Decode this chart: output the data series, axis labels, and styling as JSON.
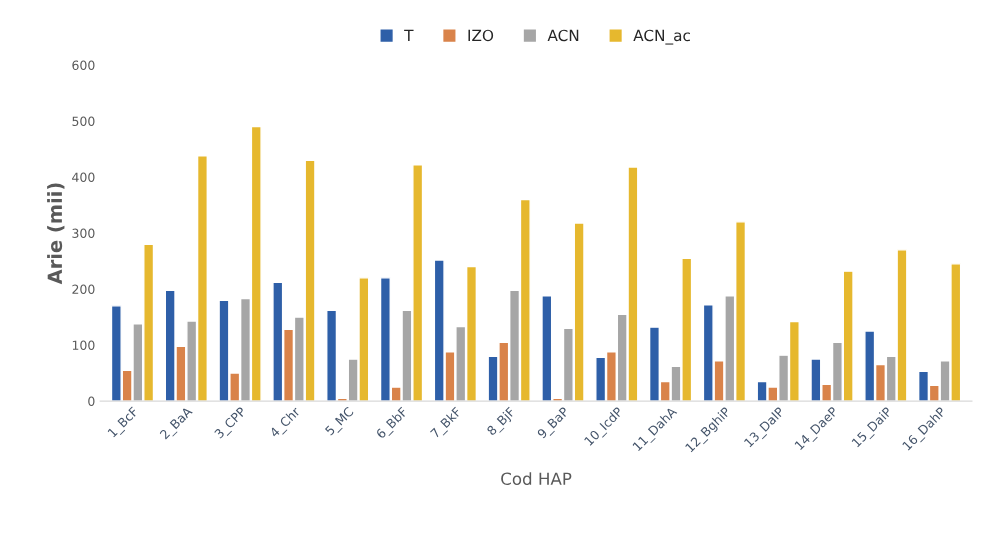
{
  "chart_data": {
    "type": "bar",
    "xlabel": "Cod HAP",
    "ylabel": "Arie (mii)",
    "categories": [
      "1_BcF",
      "2_BaA",
      "3_CPP",
      "4_Chr",
      "5_MC",
      "6_BbF",
      "7_BkF",
      "8_BjF",
      "9_BaP",
      "10_IcdP",
      "11_DahA",
      "12_BghiP",
      "13_DalP",
      "14_DaeP",
      "15_DaiP",
      "16_DahP"
    ],
    "series": [
      {
        "name": "T",
        "color": "#2e5fa8",
        "values": [
          170,
          198,
          180,
          212,
          162,
          220,
          252,
          80,
          188,
          78,
          132,
          172,
          35,
          75,
          125,
          53
        ]
      },
      {
        "name": "IZO",
        "color": "#d9834a",
        "values": [
          55,
          98,
          50,
          128,
          5,
          25,
          88,
          105,
          5,
          88,
          35,
          72,
          25,
          30,
          65,
          28
        ]
      },
      {
        "name": "ACN",
        "color": "#a6a6a6",
        "values": [
          138,
          143,
          183,
          150,
          75,
          162,
          133,
          198,
          130,
          155,
          62,
          188,
          82,
          105,
          80,
          72
        ]
      },
      {
        "name": "ACN_ac",
        "color": "#e6b82e",
        "values": [
          280,
          438,
          490,
          430,
          220,
          422,
          240,
          360,
          318,
          418,
          255,
          320,
          142,
          232,
          270,
          245
        ]
      }
    ],
    "ylim": [
      0,
      600
    ],
    "yticks": [
      0,
      100,
      200,
      300,
      400,
      500,
      600
    ],
    "legend": "top",
    "grid": false
  }
}
